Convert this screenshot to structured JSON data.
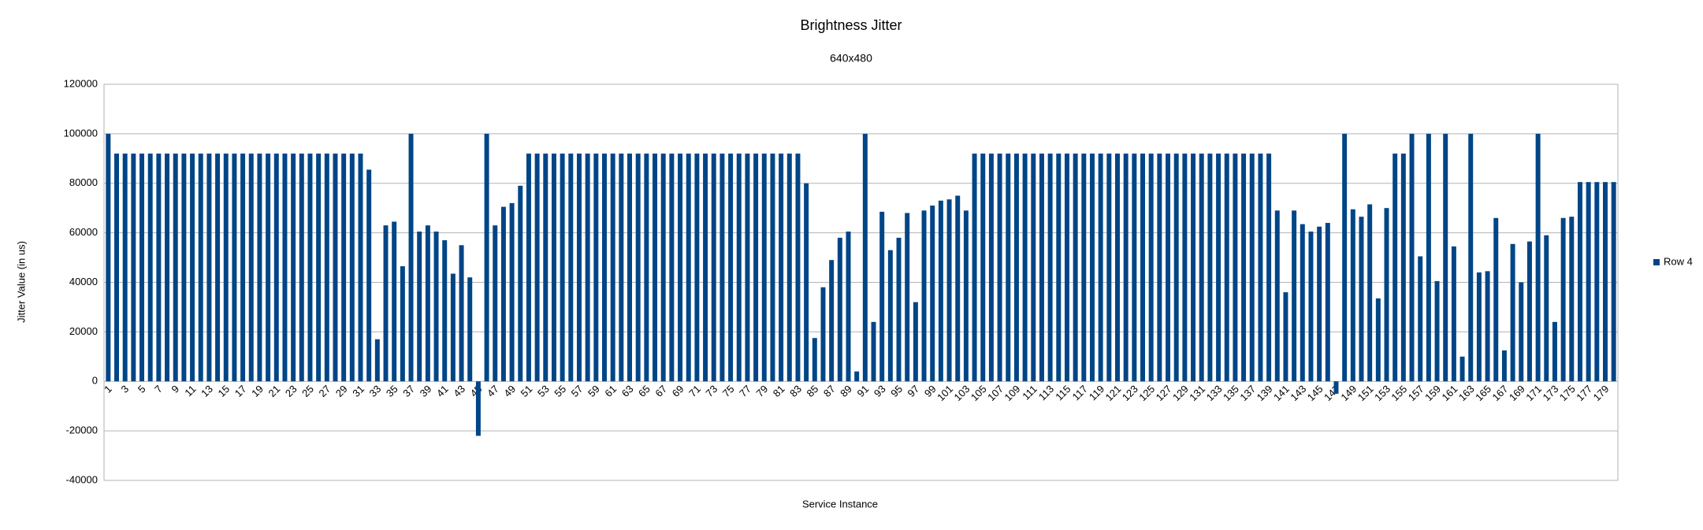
{
  "chart_data": {
    "type": "bar",
    "title": "Brightness Jitter",
    "subtitle": "640x480",
    "x_label": "Service Instance",
    "y_label": "Jitter Value (in us)",
    "categories": [
      1,
      null,
      3,
      null,
      5,
      null,
      7,
      null,
      9,
      null,
      11,
      null,
      13,
      null,
      15,
      null,
      17,
      null,
      19,
      null,
      21,
      null,
      23,
      null,
      25,
      null,
      27,
      null,
      29,
      null,
      31,
      null,
      33,
      null,
      35,
      null,
      37,
      null,
      39,
      null,
      41,
      null,
      43,
      null,
      45,
      null,
      47,
      null,
      49,
      null,
      51,
      null,
      53,
      null,
      55,
      null,
      57,
      null,
      59,
      null,
      61,
      null,
      63,
      null,
      65,
      null,
      67,
      null,
      69,
      null,
      71,
      null,
      73,
      null,
      75,
      null,
      77,
      null,
      79,
      null,
      81,
      null,
      83,
      null,
      85,
      null,
      87,
      null,
      89,
      null,
      91,
      null,
      93,
      null,
      95,
      null,
      97,
      null,
      99,
      null,
      101,
      null,
      103,
      null,
      105,
      null,
      107,
      null,
      109,
      null,
      111,
      null,
      113,
      null,
      115,
      null,
      117,
      null,
      119,
      null,
      121,
      null,
      123,
      null,
      125,
      null,
      127,
      null,
      129,
      null,
      131,
      null,
      133,
      null,
      135,
      null,
      137,
      null,
      139,
      null,
      141,
      null,
      143,
      null,
      145,
      null,
      147,
      null,
      149,
      null,
      151,
      null,
      153,
      null,
      155,
      null,
      157,
      null,
      159,
      null,
      161,
      null,
      163,
      null,
      165,
      null,
      167,
      null,
      169,
      null,
      171,
      null,
      173,
      null,
      175,
      null,
      177,
      null,
      179,
      null
    ],
    "series": [
      {
        "name": "Row 4",
        "color": "#004586",
        "values": [
          100000,
          92000,
          92000,
          92000,
          92000,
          92000,
          92000,
          92000,
          92000,
          92000,
          92000,
          92000,
          92000,
          92000,
          92000,
          92000,
          92000,
          92000,
          92000,
          92000,
          92000,
          92000,
          92000,
          92000,
          92000,
          92000,
          92000,
          92000,
          92000,
          92000,
          92000,
          85500,
          17000,
          63000,
          64500,
          46500,
          100000,
          60500,
          63000,
          60500,
          57000,
          43500,
          55000,
          42000,
          -22000,
          100000,
          63000,
          70500,
          72000,
          79000,
          92000,
          92000,
          92000,
          92000,
          92000,
          92000,
          92000,
          92000,
          92000,
          92000,
          92000,
          92000,
          92000,
          92000,
          92000,
          92000,
          92000,
          92000,
          92000,
          92000,
          92000,
          92000,
          92000,
          92000,
          92000,
          92000,
          92000,
          92000,
          92000,
          92000,
          92000,
          92000,
          92000,
          80000,
          17500,
          38000,
          49000,
          58000,
          60500,
          4000,
          100000,
          24000,
          68500,
          53000,
          58000,
          68000,
          32000,
          69000,
          71000,
          73000,
          73500,
          75000,
          69000,
          92000,
          92000,
          92000,
          92000,
          92000,
          92000,
          92000,
          92000,
          92000,
          92000,
          92000,
          92000,
          92000,
          92000,
          92000,
          92000,
          92000,
          92000,
          92000,
          92000,
          92000,
          92000,
          92000,
          92000,
          92000,
          92000,
          92000,
          92000,
          92000,
          92000,
          92000,
          92000,
          92000,
          92000,
          92000,
          92000,
          69000,
          36000,
          69000,
          63500,
          60500,
          62500,
          64000,
          -5000,
          100000,
          69500,
          66500,
          71500,
          33500,
          70000,
          92000,
          92000,
          100000,
          50500,
          100000,
          40500,
          100000,
          54500,
          10000,
          100000,
          44000,
          44500,
          66000,
          12500,
          55500,
          40000,
          56500,
          100000,
          59000,
          24000,
          66000,
          66500,
          80500,
          80500,
          80500,
          80500,
          80500
        ]
      }
    ],
    "ylim": [
      -40000,
      120000
    ],
    "yticks": [
      -40000,
      -20000,
      0,
      20000,
      40000,
      60000,
      80000,
      100000,
      120000
    ],
    "grid": true,
    "legend": "right"
  }
}
